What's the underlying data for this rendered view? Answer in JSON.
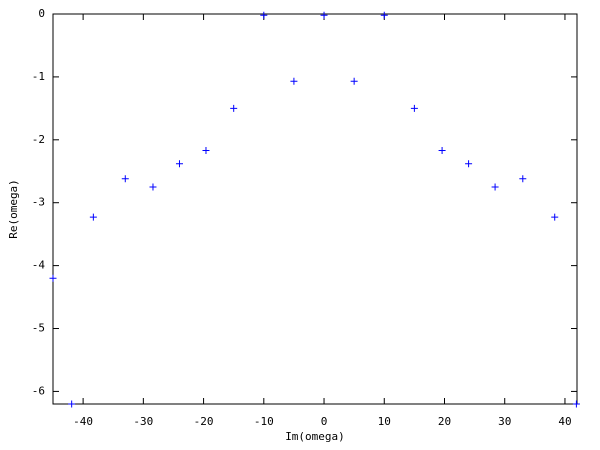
{
  "chart_data": {
    "type": "scatter",
    "x_label": "Im(omega)",
    "y_label": "Re(omega)",
    "x": [
      -45,
      -41.9,
      -38.3,
      -33,
      -28.4,
      -24,
      -19.6,
      -15,
      -10,
      -5,
      0,
      5,
      10,
      15,
      19.6,
      24,
      28.4,
      33,
      38.3,
      41.9
    ],
    "values": [
      -4.2,
      -6.2,
      -3.23,
      -2.62,
      -2.75,
      -2.38,
      -2.17,
      -1.5,
      -0.02,
      -1.07,
      -0.02,
      -1.07,
      -0.02,
      -1.5,
      -2.17,
      -2.38,
      -2.75,
      -2.62,
      -3.23,
      -6.2
    ],
    "color": "#0000ff",
    "marker": "+",
    "xlim": [
      -45,
      42
    ],
    "ylim": [
      -6.2,
      0
    ],
    "xticks": [
      -40,
      -30,
      -20,
      -10,
      0,
      10,
      20,
      30,
      40
    ],
    "yticks": [
      0,
      -1,
      -2,
      -3,
      -4,
      -5,
      -6
    ],
    "grid": false
  }
}
